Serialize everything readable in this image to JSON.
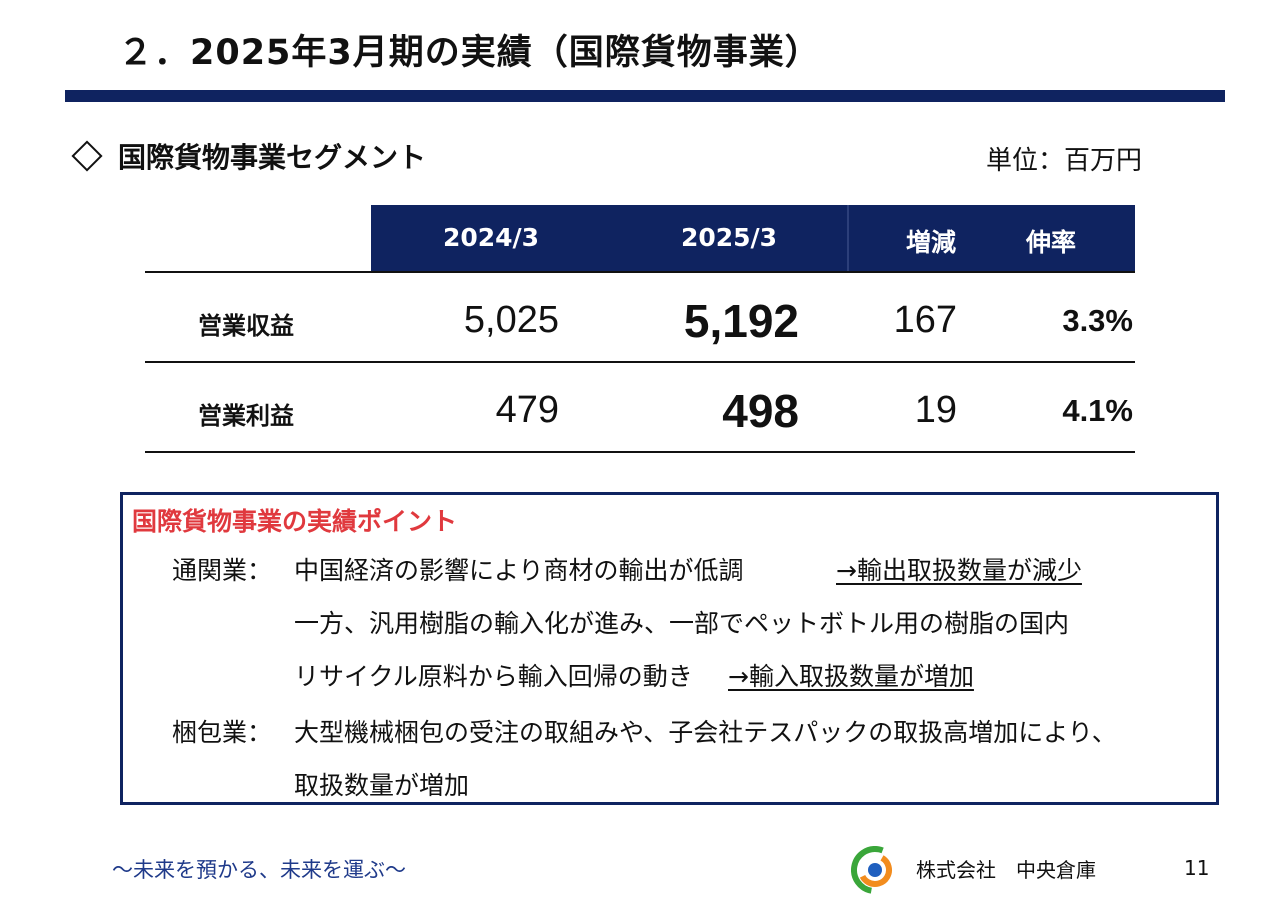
{
  "title": "２．2025年3月期の実績（国際貨物事業）",
  "section": {
    "icon": "diamond-outline-icon",
    "label": "国際貨物事業セグメント",
    "unit": "単位：百万円"
  },
  "table": {
    "headers": [
      "2024/3",
      "2025/3",
      "増減",
      "伸率"
    ],
    "rows": [
      {
        "label": "営業収益",
        "v2024": "5,025",
        "v2025": "5,192",
        "diff": "167",
        "rate": "3.3%"
      },
      {
        "label": "営業利益",
        "v2024": "479",
        "v2025": "498",
        "diff": "19",
        "rate": "4.1%"
      }
    ]
  },
  "points": {
    "title": "国際貨物事業の実績ポイント",
    "customs": {
      "label": "通関業：",
      "line1_text": "中国経済の影響により商材の輸出が低調",
      "line1_result": "→輸出取扱数量が減少",
      "line2_text": "一方、汎用樹脂の輸入化が進み、一部でペットボトル用の樹脂の国内",
      "line3_text": "リサイクル原料から輸入回帰の動き",
      "line3_result": "→輸入取扱数量が増加"
    },
    "packing": {
      "label": "梱包業：",
      "line1_text": "大型機械梱包の受注の取組みや、子会社テスパックの取扱高増加により、",
      "line2_text": "取扱数量が増加"
    }
  },
  "footer": {
    "tagline": "～未来を預かる、未来を運ぶ～",
    "company": "株式会社　中央倉庫",
    "page": "11",
    "logo_icon": "company-logo-icon"
  },
  "colors": {
    "navy": "#0f2360",
    "accent_red": "#e0393e",
    "tagline_blue": "#1f3a8a"
  }
}
